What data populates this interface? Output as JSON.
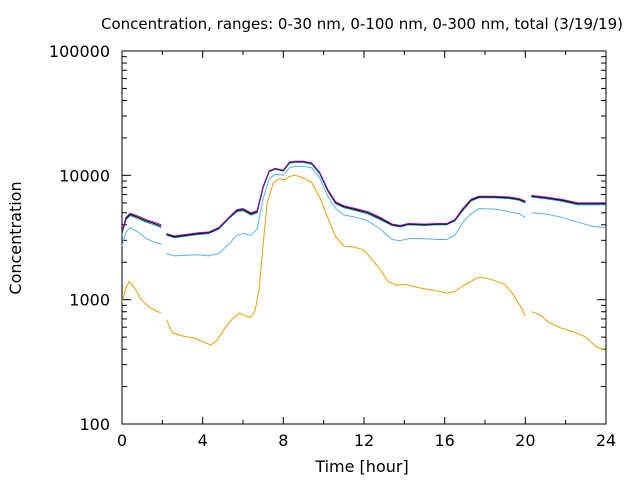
{
  "chart_data": {
    "type": "line",
    "title": "Concentration, ranges: 0-30 nm, 0-100 nm, 0-300 nm, total (3/19/19)",
    "xlabel": "Time [hour]",
    "ylabel": "Concentration",
    "xlim": [
      0,
      24
    ],
    "ylim": [
      100,
      100000
    ],
    "yscale": "log",
    "grid": false,
    "x_ticks": [
      "0",
      "4",
      "8",
      "12",
      "16",
      "20",
      "24"
    ],
    "y_ticks": [
      "100",
      "1000",
      "10000",
      "100000"
    ],
    "series": [
      {
        "color": "#e69f00",
        "segments": [
          [
            [
              0,
              950
            ],
            [
              0.2,
              1250
            ],
            [
              0.35,
              1400
            ],
            [
              0.6,
              1250
            ],
            [
              1.0,
              980
            ],
            [
              1.4,
              860
            ],
            [
              1.75,
              800
            ],
            [
              1.95,
              790
            ]
          ],
          [
            [
              2.2,
              690
            ],
            [
              2.5,
              540
            ],
            [
              3.0,
              510
            ],
            [
              3.6,
              490
            ],
            [
              4.0,
              460
            ],
            [
              4.4,
              430
            ],
            [
              4.7,
              470
            ],
            [
              5.1,
              590
            ],
            [
              5.5,
              710
            ],
            [
              5.8,
              780
            ],
            [
              6.1,
              740
            ],
            [
              6.4,
              720
            ],
            [
              6.6,
              820
            ],
            [
              6.8,
              1200
            ],
            [
              7.0,
              2800
            ],
            [
              7.2,
              6000
            ],
            [
              7.5,
              8700
            ],
            [
              7.8,
              9400
            ],
            [
              8.1,
              9200
            ],
            [
              8.3,
              9800
            ],
            [
              8.6,
              10000
            ],
            [
              9.0,
              9500
            ],
            [
              9.4,
              8800
            ],
            [
              9.8,
              6700
            ],
            [
              10.2,
              4600
            ],
            [
              10.6,
              3200
            ],
            [
              11.0,
              2700
            ],
            [
              11.5,
              2650
            ],
            [
              12.0,
              2500
            ],
            [
              12.4,
              2100
            ],
            [
              12.8,
              1750
            ],
            [
              13.2,
              1400
            ],
            [
              13.6,
              1310
            ],
            [
              14.0,
              1330
            ],
            [
              14.4,
              1280
            ],
            [
              15.0,
              1220
            ],
            [
              15.6,
              1180
            ],
            [
              16.1,
              1130
            ],
            [
              16.5,
              1160
            ],
            [
              16.9,
              1290
            ],
            [
              17.3,
              1400
            ],
            [
              17.6,
              1500
            ],
            [
              18.0,
              1500
            ],
            [
              18.5,
              1420
            ],
            [
              19.0,
              1320
            ],
            [
              19.4,
              1100
            ],
            [
              19.8,
              860
            ],
            [
              20.0,
              740
            ]
          ],
          [
            [
              20.3,
              800
            ],
            [
              20.7,
              760
            ],
            [
              21.2,
              650
            ],
            [
              21.8,
              590
            ],
            [
              22.4,
              550
            ],
            [
              23.0,
              500
            ],
            [
              23.5,
              420
            ],
            [
              24,
              390
            ]
          ]
        ]
      },
      {
        "color": "#56b4e9",
        "segments": [
          [
            [
              0,
              2700
            ],
            [
              0.2,
              3500
            ],
            [
              0.4,
              3800
            ],
            [
              0.8,
              3500
            ],
            [
              1.2,
              3100
            ],
            [
              1.6,
              2900
            ],
            [
              1.95,
              2800
            ]
          ],
          [
            [
              2.2,
              2350
            ],
            [
              2.6,
              2250
            ],
            [
              3.2,
              2280
            ],
            [
              3.8,
              2300
            ],
            [
              4.3,
              2250
            ],
            [
              4.8,
              2350
            ],
            [
              5.3,
              2800
            ],
            [
              5.7,
              3300
            ],
            [
              6.0,
              3400
            ],
            [
              6.4,
              3300
            ],
            [
              6.7,
              3700
            ],
            [
              7.0,
              6500
            ],
            [
              7.3,
              9400
            ],
            [
              7.6,
              10200
            ],
            [
              8.0,
              10000
            ],
            [
              8.3,
              11500
            ],
            [
              8.6,
              11800
            ],
            [
              9.0,
              11800
            ],
            [
              9.4,
              11500
            ],
            [
              9.8,
              9600
            ],
            [
              10.2,
              6800
            ],
            [
              10.6,
              5400
            ],
            [
              11.0,
              4800
            ],
            [
              11.6,
              4600
            ],
            [
              12.2,
              4300
            ],
            [
              12.8,
              3700
            ],
            [
              13.4,
              3050
            ],
            [
              13.8,
              2980
            ],
            [
              14.2,
              3100
            ],
            [
              15.0,
              3100
            ],
            [
              15.6,
              3050
            ],
            [
              16.1,
              3050
            ],
            [
              16.5,
              3300
            ],
            [
              16.9,
              4200
            ],
            [
              17.3,
              4900
            ],
            [
              17.7,
              5400
            ],
            [
              18.5,
              5350
            ],
            [
              19.2,
              5100
            ],
            [
              19.7,
              4900
            ],
            [
              20.0,
              4600
            ]
          ],
          [
            [
              20.3,
              5000
            ],
            [
              21.0,
              4900
            ],
            [
              21.8,
              4600
            ],
            [
              22.6,
              4200
            ],
            [
              23.3,
              3900
            ],
            [
              24,
              3800
            ]
          ]
        ]
      },
      {
        "color": "#009e73",
        "segments": [
          [
            [
              0,
              3400
            ],
            [
              0.2,
              4400
            ],
            [
              0.4,
              4750
            ],
            [
              0.8,
              4500
            ],
            [
              1.2,
              4200
            ],
            [
              1.6,
              4000
            ],
            [
              1.95,
              3800
            ]
          ],
          [
            [
              2.2,
              3300
            ],
            [
              2.6,
              3150
            ],
            [
              3.2,
              3250
            ],
            [
              3.8,
              3350
            ],
            [
              4.3,
              3400
            ],
            [
              4.8,
              3700
            ],
            [
              5.3,
              4500
            ],
            [
              5.7,
              5100
            ],
            [
              6.0,
              5200
            ],
            [
              6.4,
              4800
            ],
            [
              6.7,
              5000
            ],
            [
              7.0,
              8000
            ],
            [
              7.3,
              10700
            ],
            [
              7.6,
              11200
            ],
            [
              8.0,
              10800
            ],
            [
              8.3,
              12500
            ],
            [
              8.6,
              12700
            ],
            [
              9.0,
              12700
            ],
            [
              9.4,
              12300
            ],
            [
              9.8,
              10300
            ],
            [
              10.2,
              7500
            ],
            [
              10.6,
              5900
            ],
            [
              11.0,
              5500
            ],
            [
              11.6,
              5200
            ],
            [
              12.2,
              4900
            ],
            [
              12.8,
              4400
            ],
            [
              13.4,
              3950
            ],
            [
              13.8,
              3850
            ],
            [
              14.2,
              4000
            ],
            [
              15.0,
              3950
            ],
            [
              15.6,
              4000
            ],
            [
              16.1,
              4000
            ],
            [
              16.5,
              4300
            ],
            [
              16.9,
              5200
            ],
            [
              17.3,
              6200
            ],
            [
              17.7,
              6600
            ],
            [
              18.5,
              6600
            ],
            [
              19.2,
              6500
            ],
            [
              19.7,
              6300
            ],
            [
              20.0,
              6000
            ]
          ],
          [
            [
              20.3,
              6700
            ],
            [
              21.0,
              6500
            ],
            [
              21.8,
              6200
            ],
            [
              22.6,
              5800
            ],
            [
              23.3,
              5800
            ],
            [
              24,
              5800
            ]
          ]
        ]
      },
      {
        "color": "#000000",
        "segments": [
          [
            [
              0,
              3450
            ],
            [
              0.2,
              4500
            ],
            [
              0.4,
              4850
            ],
            [
              0.8,
              4600
            ],
            [
              1.2,
              4300
            ],
            [
              1.6,
              4100
            ],
            [
              1.95,
              3900
            ]
          ],
          [
            [
              2.2,
              3350
            ],
            [
              2.6,
              3200
            ],
            [
              3.2,
              3300
            ],
            [
              3.8,
              3400
            ],
            [
              4.3,
              3450
            ],
            [
              4.8,
              3750
            ],
            [
              5.3,
              4550
            ],
            [
              5.7,
              5200
            ],
            [
              6.0,
              5300
            ],
            [
              6.4,
              4900
            ],
            [
              6.7,
              5100
            ],
            [
              7.0,
              8100
            ],
            [
              7.3,
              10800
            ],
            [
              7.6,
              11300
            ],
            [
              8.0,
              10900
            ],
            [
              8.3,
              12700
            ],
            [
              8.6,
              12900
            ],
            [
              9.0,
              12900
            ],
            [
              9.4,
              12500
            ],
            [
              9.8,
              10500
            ],
            [
              10.2,
              7600
            ],
            [
              10.6,
              6000
            ],
            [
              11.0,
              5600
            ],
            [
              11.6,
              5300
            ],
            [
              12.2,
              5000
            ],
            [
              12.8,
              4500
            ],
            [
              13.4,
              4000
            ],
            [
              13.8,
              3900
            ],
            [
              14.2,
              4050
            ],
            [
              15.0,
              4000
            ],
            [
              15.6,
              4050
            ],
            [
              16.1,
              4050
            ],
            [
              16.5,
              4350
            ],
            [
              16.9,
              5300
            ],
            [
              17.3,
              6300
            ],
            [
              17.7,
              6700
            ],
            [
              18.5,
              6700
            ],
            [
              19.2,
              6600
            ],
            [
              19.7,
              6400
            ],
            [
              20.0,
              6100
            ]
          ],
          [
            [
              20.3,
              6800
            ],
            [
              21.0,
              6600
            ],
            [
              21.8,
              6300
            ],
            [
              22.6,
              5900
            ],
            [
              23.3,
              5900
            ],
            [
              24,
              5900
            ]
          ]
        ]
      },
      {
        "color": "#9400d3",
        "segments": [
          [
            [
              0,
              3500
            ],
            [
              0.2,
              4600
            ],
            [
              0.4,
              4950
            ],
            [
              0.8,
              4700
            ],
            [
              1.2,
              4400
            ],
            [
              1.6,
              4200
            ],
            [
              1.95,
              4000
            ]
          ],
          [
            [
              2.2,
              3400
            ],
            [
              2.6,
              3250
            ],
            [
              3.2,
              3350
            ],
            [
              3.8,
              3450
            ],
            [
              4.3,
              3500
            ],
            [
              4.8,
              3800
            ],
            [
              5.3,
              4600
            ],
            [
              5.7,
              5300
            ],
            [
              6.0,
              5400
            ],
            [
              6.4,
              5000
            ],
            [
              6.7,
              5200
            ],
            [
              7.0,
              8200
            ],
            [
              7.3,
              10900
            ],
            [
              7.6,
              11400
            ],
            [
              8.0,
              11000
            ],
            [
              8.3,
              12800
            ],
            [
              8.6,
              13000
            ],
            [
              9.0,
              13000
            ],
            [
              9.4,
              12600
            ],
            [
              9.8,
              10600
            ],
            [
              10.2,
              7700
            ],
            [
              10.6,
              6100
            ],
            [
              11.0,
              5700
            ],
            [
              11.6,
              5400
            ],
            [
              12.2,
              5100
            ],
            [
              12.8,
              4600
            ],
            [
              13.4,
              4050
            ],
            [
              13.8,
              3950
            ],
            [
              14.2,
              4100
            ],
            [
              15.0,
              4050
            ],
            [
              15.6,
              4100
            ],
            [
              16.1,
              4100
            ],
            [
              16.5,
              4400
            ],
            [
              16.9,
              5400
            ],
            [
              17.3,
              6400
            ],
            [
              17.7,
              6800
            ],
            [
              18.5,
              6800
            ],
            [
              19.2,
              6700
            ],
            [
              19.7,
              6500
            ],
            [
              20.0,
              6200
            ]
          ],
          [
            [
              20.3,
              6900
            ],
            [
              21.0,
              6700
            ],
            [
              21.8,
              6400
            ],
            [
              22.6,
              6000
            ],
            [
              23.3,
              6000
            ],
            [
              24,
              6000
            ]
          ]
        ]
      }
    ]
  }
}
